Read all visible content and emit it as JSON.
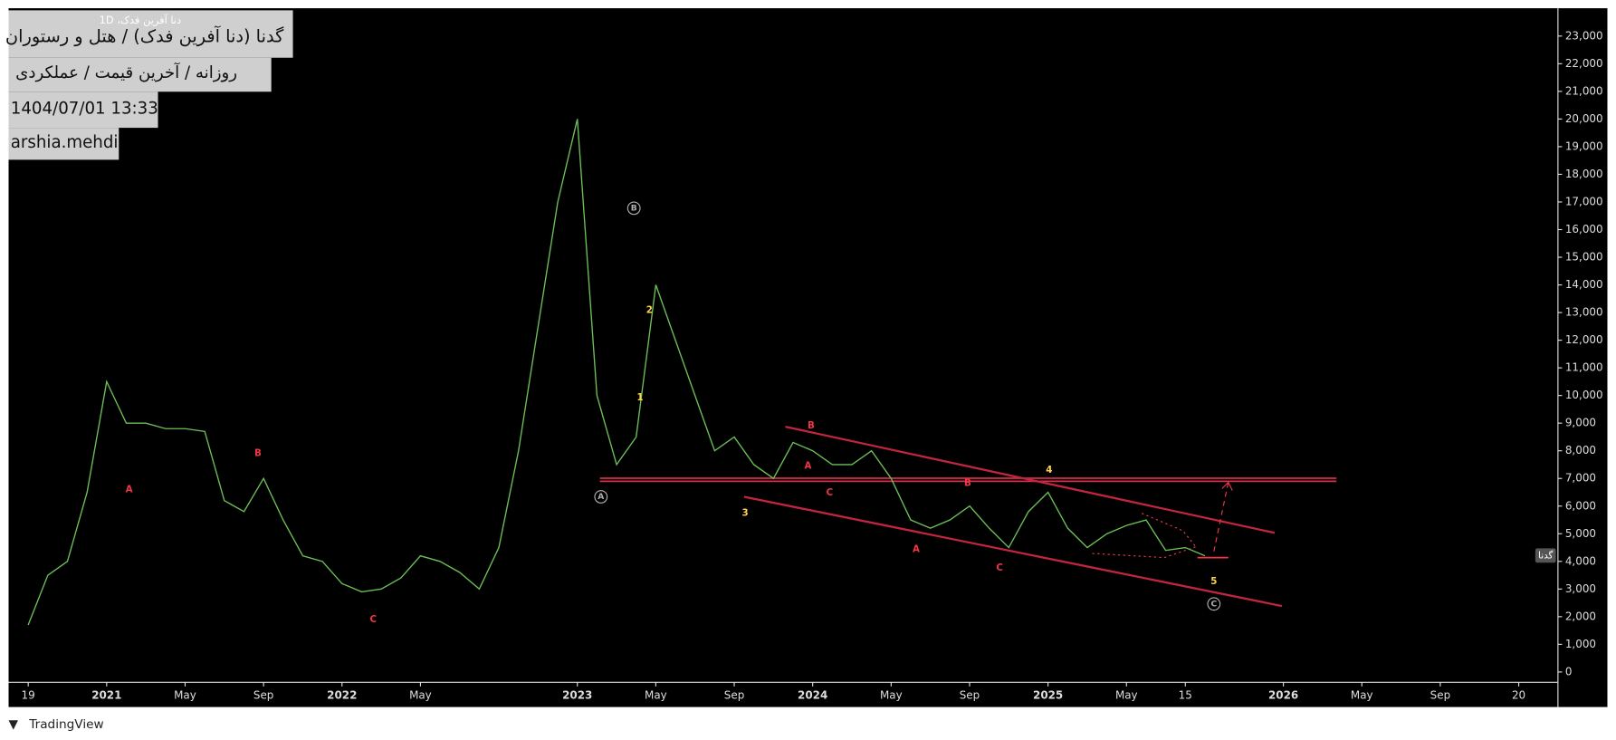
{
  "header": {
    "symbol_small": "دنا آفرین فدک، 1D",
    "title": "گدنا (دنا آفرین فدک) / هتل و رستوران",
    "subtitle": "روزانه / آخرین قیمت / عملکردی",
    "datetime": "1404/07/01 13:33",
    "author": "arshia.mehdi"
  },
  "footer": "TradingView",
  "chart_data": {
    "type": "line",
    "color": "#6cbf58",
    "x": [
      "2020-09",
      "2020-10",
      "2020-11",
      "2020-12",
      "2021-01",
      "2021-02",
      "2021-03",
      "2021-04",
      "2021-05",
      "2021-06",
      "2021-07",
      "2021-08",
      "2021-09",
      "2021-10",
      "2021-11",
      "2021-12",
      "2022-01",
      "2022-02",
      "2022-03",
      "2022-04",
      "2022-05",
      "2022-06",
      "2022-07",
      "2022-08",
      "2022-09",
      "2022-10",
      "2022-11",
      "2022-12",
      "2023-01",
      "2023-02",
      "2023-03",
      "2023-04",
      "2023-05",
      "2023-06",
      "2023-07",
      "2023-08",
      "2023-09",
      "2023-10",
      "2023-11",
      "2023-12",
      "2024-01",
      "2024-02",
      "2024-03",
      "2024-04",
      "2024-05",
      "2024-06",
      "2024-07",
      "2024-08",
      "2024-09",
      "2024-10",
      "2024-11",
      "2024-12",
      "2025-01",
      "2025-02",
      "2025-03",
      "2025-04",
      "2025-05",
      "2025-06",
      "2025-07",
      "2025-08",
      "2025-09"
    ],
    "values": [
      1700,
      3500,
      4000,
      6500,
      10500,
      9000,
      9000,
      8800,
      8800,
      8700,
      6200,
      5800,
      7000,
      5500,
      4200,
      4000,
      3200,
      2900,
      3000,
      3400,
      4200,
      4000,
      3600,
      3000,
      4500,
      8000,
      12500,
      17000,
      20000,
      10000,
      7500,
      8500,
      14000,
      12000,
      10000,
      8000,
      8500,
      7500,
      7000,
      8300,
      8000,
      7500,
      7500,
      8000,
      7000,
      5500,
      5200,
      5500,
      6000,
      5200,
      4500,
      5800,
      6500,
      5200,
      4500,
      5000,
      5300,
      5500,
      4400,
      4500,
      4200
    ],
    "xlim": [
      "2020-08",
      "2027-03"
    ],
    "xticks": [
      {
        "value": "2020-09",
        "label": "19"
      },
      {
        "value": "2021-01",
        "label": "2021"
      },
      {
        "value": "2021-05",
        "label": "May"
      },
      {
        "value": "2021-09",
        "label": "Sep"
      },
      {
        "value": "2022-01",
        "label": "2022"
      },
      {
        "value": "2022-05",
        "label": "May"
      },
      {
        "value": "2023-01",
        "label": "2023"
      },
      {
        "value": "2023-05",
        "label": "May"
      },
      {
        "value": "2023-09",
        "label": "Sep"
      },
      {
        "value": "2024-01",
        "label": "2024"
      },
      {
        "value": "2024-05",
        "label": "May"
      },
      {
        "value": "2024-09",
        "label": "Sep"
      },
      {
        "value": "2025-01",
        "label": "2025"
      },
      {
        "value": "2025-05",
        "label": "May"
      },
      {
        "value": "2025-08",
        "label": "15"
      },
      {
        "value": "2026-01",
        "label": "2026"
      },
      {
        "value": "2026-05",
        "label": "May"
      },
      {
        "value": "2026-09",
        "label": "Sep"
      },
      {
        "value": "2027-01",
        "label": "20"
      }
    ],
    "ylim": [
      0,
      23000
    ],
    "yticks": [
      0,
      {
        "value": 1000,
        "label": "1,000"
      },
      {
        "value": 2000,
        "label": "2,000"
      },
      {
        "value": 3000,
        "label": "3,000"
      },
      {
        "value": 4000,
        "label": "4,000"
      },
      {
        "value": 5000,
        "label": "5,000"
      },
      {
        "value": 6000,
        "label": "6,000"
      },
      {
        "value": 7000,
        "label": "7,000"
      },
      {
        "value": 8000,
        "label": "8,000"
      },
      {
        "value": 9000,
        "label": "9,000"
      },
      {
        "value": 10000,
        "label": "10,000"
      },
      {
        "value": 11000,
        "label": "11,000"
      },
      {
        "value": 12000,
        "label": "12,000"
      },
      {
        "value": 13000,
        "label": "13,000"
      },
      {
        "value": 14000,
        "label": "14,000"
      },
      {
        "value": 15000,
        "label": "15,000"
      },
      {
        "value": 16000,
        "label": "16,000"
      },
      {
        "value": 17000,
        "label": "17,000"
      },
      {
        "value": 18000,
        "label": "18,000"
      },
      {
        "value": 19000,
        "label": "19,000"
      },
      {
        "value": 20000,
        "label": "20,000"
      },
      {
        "value": 21000,
        "label": "21,000"
      },
      {
        "value": 22000,
        "label": "22,000"
      },
      {
        "value": 23000,
        "label": "23,000"
      }
    ],
    "price_tag": "گدنا",
    "annotations": [
      {
        "text": "A",
        "color": "#f23645"
      },
      {
        "text": "B",
        "color": "#f23645"
      },
      {
        "text": "C",
        "color": "#f23645"
      },
      {
        "text": "A",
        "color": "#b0b0b0"
      },
      {
        "text": "B",
        "color": "#b0b0b0"
      },
      {
        "text": "1",
        "color": "#ffd54f"
      },
      {
        "text": "2",
        "color": "#ffd54f"
      },
      {
        "text": "3",
        "color": "#ffd54f"
      },
      {
        "text": "B",
        "color": "#f23645"
      },
      {
        "text": "A",
        "color": "#f23645"
      },
      {
        "text": "C",
        "color": "#f23645"
      },
      {
        "text": "B",
        "color": "#f23645"
      },
      {
        "text": "A",
        "color": "#f23645"
      },
      {
        "text": "C",
        "color": "#f23645"
      },
      {
        "text": "4",
        "color": "#ffd54f"
      },
      {
        "text": "5",
        "color": "#ffd54f"
      },
      {
        "text": "C",
        "color": "#b0b0b0"
      }
    ]
  }
}
